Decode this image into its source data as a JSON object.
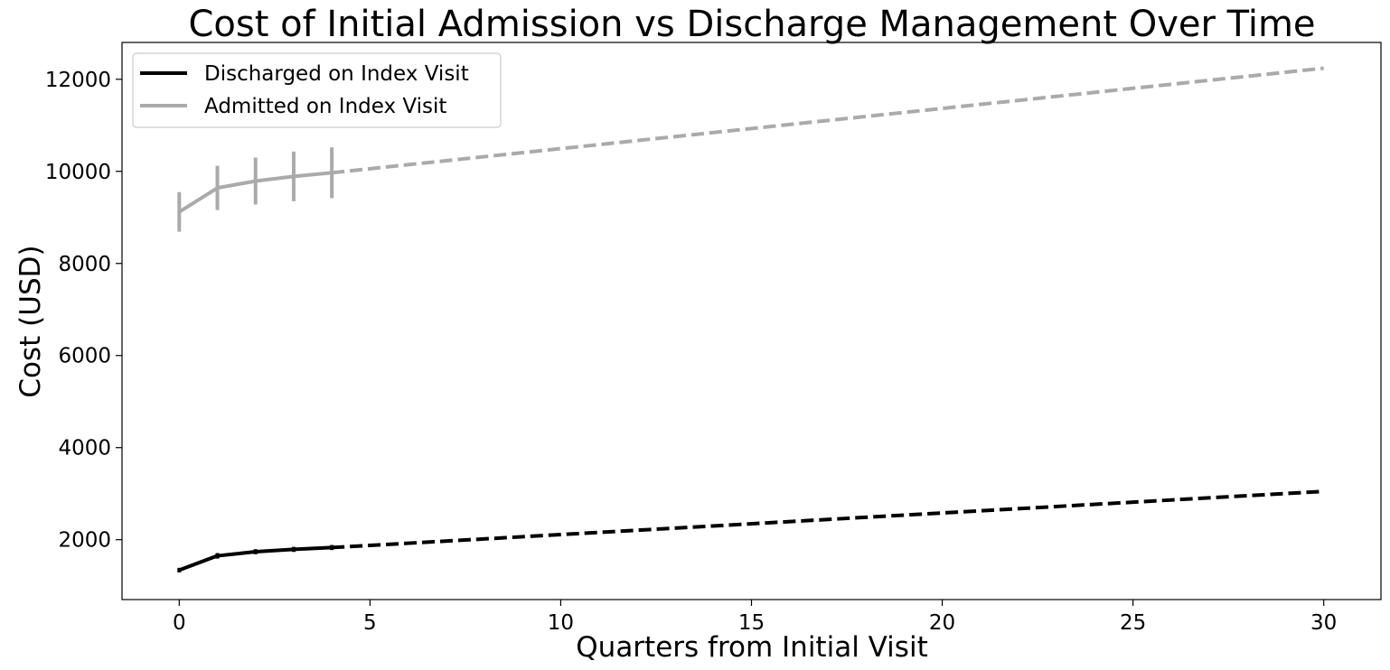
{
  "chart_data": {
    "type": "line",
    "title": "Cost of Initial Admission vs Discharge Management Over Time",
    "xlabel": "Quarters from Initial Visit",
    "ylabel": "Cost (USD)",
    "xlim": [
      -1.5,
      31.5
    ],
    "ylim": [
      700,
      12800
    ],
    "xticks": [
      0,
      5,
      10,
      15,
      20,
      25,
      30
    ],
    "yticks": [
      2000,
      4000,
      6000,
      8000,
      10000,
      12000
    ],
    "grid": false,
    "legend_position": "top-left",
    "series": [
      {
        "name": "Discharged on Index Visit",
        "color": "#000000",
        "observed": {
          "x": [
            0,
            1,
            2,
            3,
            4
          ],
          "y": [
            1340,
            1650,
            1740,
            1790,
            1830
          ],
          "error": [
            50,
            60,
            55,
            55,
            55
          ]
        },
        "projected": {
          "x": [
            4,
            30
          ],
          "y": [
            1830,
            3050
          ]
        }
      },
      {
        "name": "Admitted on Index Visit",
        "color": "#aaaaaa",
        "observed": {
          "x": [
            0,
            1,
            2,
            3,
            4
          ],
          "y": [
            9120,
            9640,
            9790,
            9890,
            9970
          ],
          "error": [
            430,
            480,
            510,
            540,
            550
          ]
        },
        "projected": {
          "x": [
            4,
            30
          ],
          "y": [
            9970,
            12240
          ]
        }
      }
    ]
  }
}
